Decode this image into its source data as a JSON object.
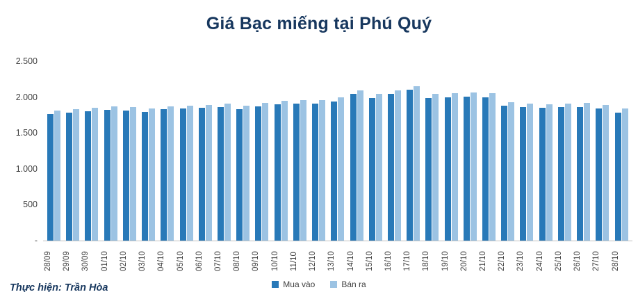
{
  "title": "Giá Bạc miếng tại Phú Quý",
  "footer": {
    "credit": "Thực hiện: Trần Hòa"
  },
  "colors": {
    "title": "#17375e",
    "buy_bar": "#2879b8",
    "sell_bar": "#9cc3e3",
    "axis_text": "#404040",
    "baseline": "#bfbfbf"
  },
  "chart_data": {
    "type": "bar",
    "title": "Giá Bạc miếng tại Phú Quý",
    "xlabel": "",
    "ylabel": "",
    "ylim": [
      0,
      2500
    ],
    "grid": false,
    "legend_position": "bottom",
    "yticks": [
      {
        "label": "2.500",
        "value": 2500
      },
      {
        "label": "2.000",
        "value": 2000
      },
      {
        "label": "1.500",
        "value": 1500
      },
      {
        "label": "1.000",
        "value": 1000
      },
      {
        "label": "500",
        "value": 500
      },
      {
        "label": "-",
        "value": 0
      }
    ],
    "categories": [
      "28/09",
      "29/09",
      "30/09",
      "01/10",
      "02/10",
      "03/10",
      "04/10",
      "05/10",
      "06/10",
      "07/10",
      "08/10",
      "09/10",
      "10/10",
      "11/10",
      "12/10",
      "13/10",
      "14/10",
      "15/10",
      "16/10",
      "17/10",
      "18/10",
      "19/10",
      "20/10",
      "21/10",
      "22/10",
      "23/10",
      "24/10",
      "25/10",
      "26/10",
      "27/10",
      "28/10"
    ],
    "series": [
      {
        "name": "Mua vào",
        "color": "#2879b8",
        "values": [
          1760,
          1780,
          1800,
          1820,
          1810,
          1790,
          1830,
          1840,
          1850,
          1860,
          1830,
          1870,
          1900,
          1905,
          1910,
          1940,
          2040,
          1990,
          2040,
          2100,
          1990,
          2000,
          2010,
          2000,
          1880,
          1860,
          1850,
          1860,
          1860,
          1840,
          1780
        ]
      },
      {
        "name": "Bán ra",
        "color": "#9cc3e3",
        "values": [
          1810,
          1830,
          1855,
          1870,
          1860,
          1840,
          1870,
          1880,
          1890,
          1905,
          1880,
          1920,
          1950,
          1960,
          1960,
          2000,
          2090,
          2040,
          2090,
          2150,
          2040,
          2050,
          2060,
          2050,
          1930,
          1910,
          1900,
          1910,
          1915,
          1890,
          1840
        ]
      }
    ]
  }
}
